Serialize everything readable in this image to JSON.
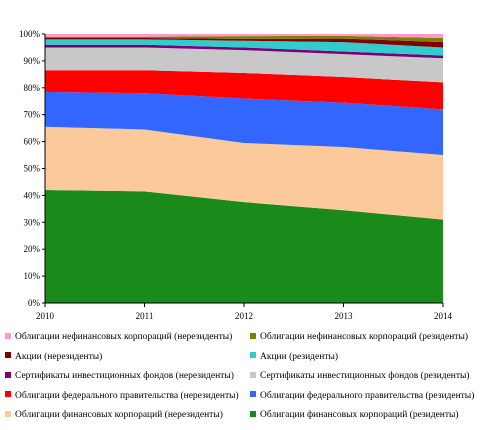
{
  "chart_data": {
    "type": "area",
    "stacked": true,
    "normalized": true,
    "title": "",
    "xlabel": "",
    "ylabel": "",
    "x": [
      "2010",
      "2011",
      "2012",
      "2013",
      "2014"
    ],
    "ylim": [
      0,
      100
    ],
    "yticks": [
      "0%",
      "10%",
      "20%",
      "30%",
      "40%",
      "50%",
      "60%",
      "70%",
      "80%",
      "90%",
      "100%"
    ],
    "grid": false,
    "legend_position": "bottom",
    "series": [
      {
        "name": "Облигации финансовых корпораций (резиденты)",
        "color": "#1a8a1a",
        "values": [
          42,
          41.5,
          37.5,
          34.5,
          31
        ]
      },
      {
        "name": "Облигации финансовых корпораций (нерезиденты)",
        "color": "#fcc99b",
        "values": [
          23.5,
          23,
          22,
          23.5,
          24
        ]
      },
      {
        "name": "Облигации федерального правительства (резиденты)",
        "color": "#3366ff",
        "values": [
          13,
          13.5,
          16.5,
          16.5,
          17
        ]
      },
      {
        "name": "Облигации федерального правительства (нерезиденты)",
        "color": "#ff0000",
        "values": [
          8,
          8.5,
          9.5,
          9.5,
          10
        ]
      },
      {
        "name": "Сертификаты инвестиционных фондов (резиденты)",
        "color": "#c8c8c8",
        "values": [
          8.5,
          8.5,
          8.5,
          8.5,
          9
        ]
      },
      {
        "name": "Сертификаты инвестиционных фондов (нерезиденты)",
        "color": "#7a007a",
        "values": [
          1,
          1,
          1,
          1,
          1
        ]
      },
      {
        "name": "Акции (резиденты)",
        "color": "#33cccc",
        "values": [
          2,
          2,
          2.5,
          3.5,
          3
        ]
      },
      {
        "name": "Акции (нерезиденты)",
        "color": "#800000",
        "values": [
          0.5,
          0.5,
          0.7,
          1.3,
          2
        ]
      },
      {
        "name": "Облигации нефинансовых корпораций (резиденты)",
        "color": "#808000",
        "values": [
          0.5,
          0.5,
          1,
          1,
          1.5
        ]
      },
      {
        "name": "Облигации нефинансовых корпораций (нерезиденты)",
        "color": "#ff99cc",
        "values": [
          1,
          1,
          0.8,
          0.7,
          1.5
        ]
      }
    ],
    "legend_order": [
      "Облигации нефинансовых корпораций (нерезиденты)",
      "Облигации нефинансовых корпораций (резиденты)",
      "Акции (нерезиденты)",
      "Акции (резиденты)",
      "Сертификаты инвестиционных фондов (нерезиденты)",
      "Сертификаты инвестиционных фондов (резиденты)",
      "Облигации федерального правительства (нерезиденты)",
      "Облигации федерального правительства (резиденты)",
      "Облигации финансовых корпораций (нерезиденты)",
      "Облигации финансовых корпораций (резиденты)"
    ]
  }
}
